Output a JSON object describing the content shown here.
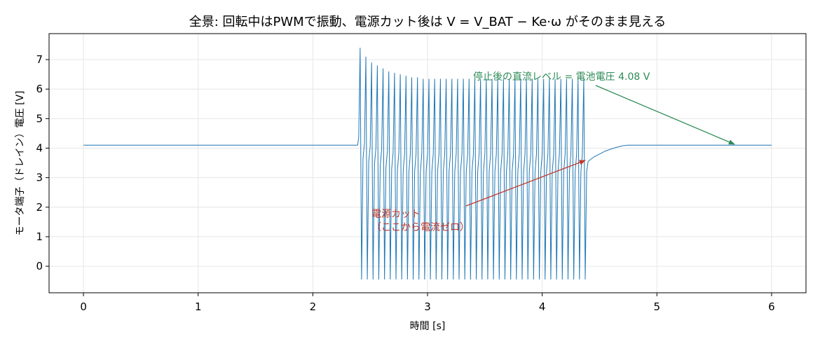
{
  "chart_data": {
    "type": "line",
    "title": "全景: 回転中はPWMで振動、電源カット後は V = V_BAT − Ke·ω がそのまま見える",
    "xlabel": "時間 [s]",
    "ylabel": "モータ端子（ドレイン）電圧 [V]",
    "xlim": [
      -0.3,
      6.3
    ],
    "ylim": [
      -0.9,
      7.88
    ],
    "xticks": [
      0,
      1,
      2,
      3,
      4,
      5,
      6
    ],
    "yticks": [
      0,
      1,
      2,
      3,
      4,
      5,
      6,
      7
    ],
    "grid": true,
    "annotations": [
      {
        "lines": [
          "停止後の直流レベル = 電池電圧 4.08 V"
        ],
        "color": "#2e8b57"
      },
      {
        "lines": [
          "電源カット",
          "（ここから電流ゼロ）"
        ],
        "color": "#c0392b"
      }
    ],
    "series": [
      {
        "color": "#1f77b4",
        "x": [
          0,
          2.39,
          2.4,
          2.4125,
          2.425,
          2.4375,
          2.45,
          2.4625,
          2.475,
          2.4875,
          2.5,
          2.5125,
          2.525,
          2.5375,
          2.55,
          2.5625,
          2.575,
          2.5875,
          2.6,
          2.6125,
          2.625,
          2.6375,
          2.65,
          2.6625,
          2.675,
          2.6875,
          2.7,
          2.7125,
          2.725,
          2.7375,
          2.75,
          2.7625,
          2.775,
          2.7875,
          2.8,
          2.8125,
          2.825,
          2.8375,
          2.85,
          2.8625,
          2.875,
          2.8875,
          2.9,
          2.9125,
          2.925,
          2.9375,
          2.95,
          2.9625,
          2.975,
          2.9875,
          3.0,
          3.0125,
          3.025,
          3.0375,
          3.05,
          3.0625,
          3.075,
          3.0875,
          3.1,
          3.1125,
          3.125,
          3.1375,
          3.15,
          3.1625,
          3.175,
          3.1875,
          3.2,
          3.2125,
          3.225,
          3.2375,
          3.25,
          3.2625,
          3.275,
          3.2875,
          3.3,
          3.3125,
          3.325,
          3.3375,
          3.35,
          3.3625,
          3.375,
          3.3875,
          3.4,
          3.4125,
          3.425,
          3.4375,
          3.45,
          3.4625,
          3.475,
          3.4875,
          3.5,
          3.5125,
          3.525,
          3.5375,
          3.55,
          3.5625,
          3.575,
          3.5875,
          3.6,
          3.6125,
          3.625,
          3.6375,
          3.65,
          3.6625,
          3.675,
          3.6875,
          3.7,
          3.7125,
          3.725,
          3.7375,
          3.75,
          3.7625,
          3.775,
          3.7875,
          3.8,
          3.8125,
          3.825,
          3.8375,
          3.85,
          3.8625,
          3.875,
          3.8875,
          3.9,
          3.9125,
          3.925,
          3.9375,
          3.95,
          3.9625,
          3.975,
          3.9875,
          4.0,
          4.0125,
          4.025,
          4.0375,
          4.05,
          4.0625,
          4.075,
          4.0875,
          4.1,
          4.1125,
          4.125,
          4.1375,
          4.15,
          4.1625,
          4.175,
          4.1875,
          4.2,
          4.2125,
          4.225,
          4.2375,
          4.25,
          4.2625,
          4.275,
          4.2875,
          4.3,
          4.3125,
          4.325,
          4.3375,
          4.35,
          4.3625,
          4.375,
          4.3875,
          4.4,
          4.45,
          4.5,
          4.55,
          4.6,
          4.65,
          4.7,
          4.75,
          6.0
        ],
        "values": [
          4.1,
          4.1,
          4.35,
          7.4,
          -0.45,
          3.65,
          4.15,
          7.1,
          -0.45,
          3.55,
          4.05,
          6.9,
          -0.45,
          3.45,
          4.0,
          6.8,
          -0.45,
          3.4,
          3.95,
          6.7,
          -0.45,
          3.35,
          3.9,
          6.6,
          -0.45,
          3.3,
          3.85,
          6.55,
          -0.45,
          3.25,
          3.85,
          6.5,
          -0.45,
          3.2,
          3.8,
          6.45,
          -0.45,
          3.2,
          3.8,
          6.4,
          -0.45,
          3.2,
          3.8,
          6.4,
          -0.45,
          3.2,
          3.8,
          6.35,
          -0.45,
          3.2,
          3.8,
          6.35,
          -0.45,
          3.2,
          3.8,
          6.35,
          -0.45,
          3.2,
          3.8,
          6.35,
          -0.45,
          3.2,
          3.8,
          6.35,
          -0.45,
          3.2,
          3.8,
          6.35,
          -0.45,
          3.2,
          3.8,
          6.35,
          -0.45,
          3.2,
          3.8,
          6.35,
          -0.45,
          3.2,
          3.8,
          6.35,
          -0.45,
          3.2,
          3.8,
          6.35,
          -0.45,
          3.2,
          3.8,
          6.35,
          -0.45,
          3.2,
          3.8,
          6.35,
          -0.45,
          3.2,
          3.8,
          6.35,
          -0.45,
          3.2,
          3.8,
          6.35,
          -0.45,
          3.2,
          3.8,
          6.35,
          -0.45,
          3.2,
          3.8,
          6.35,
          -0.45,
          3.2,
          3.8,
          6.35,
          -0.45,
          3.2,
          3.8,
          6.35,
          -0.45,
          3.2,
          3.8,
          6.35,
          -0.45,
          3.2,
          3.8,
          6.35,
          -0.45,
          3.2,
          3.8,
          6.35,
          -0.45,
          3.2,
          3.8,
          6.35,
          -0.45,
          3.2,
          3.8,
          6.35,
          -0.45,
          3.2,
          3.8,
          6.35,
          -0.45,
          3.2,
          3.8,
          6.35,
          -0.45,
          3.2,
          3.8,
          6.35,
          -0.45,
          3.2,
          3.8,
          6.35,
          -0.45,
          3.2,
          3.8,
          6.35,
          -0.45,
          3.2,
          3.8,
          6.35,
          -0.45,
          3.2,
          3.55,
          3.7,
          3.8,
          3.9,
          3.97,
          4.03,
          4.08,
          4.1,
          4.1
        ]
      }
    ]
  }
}
